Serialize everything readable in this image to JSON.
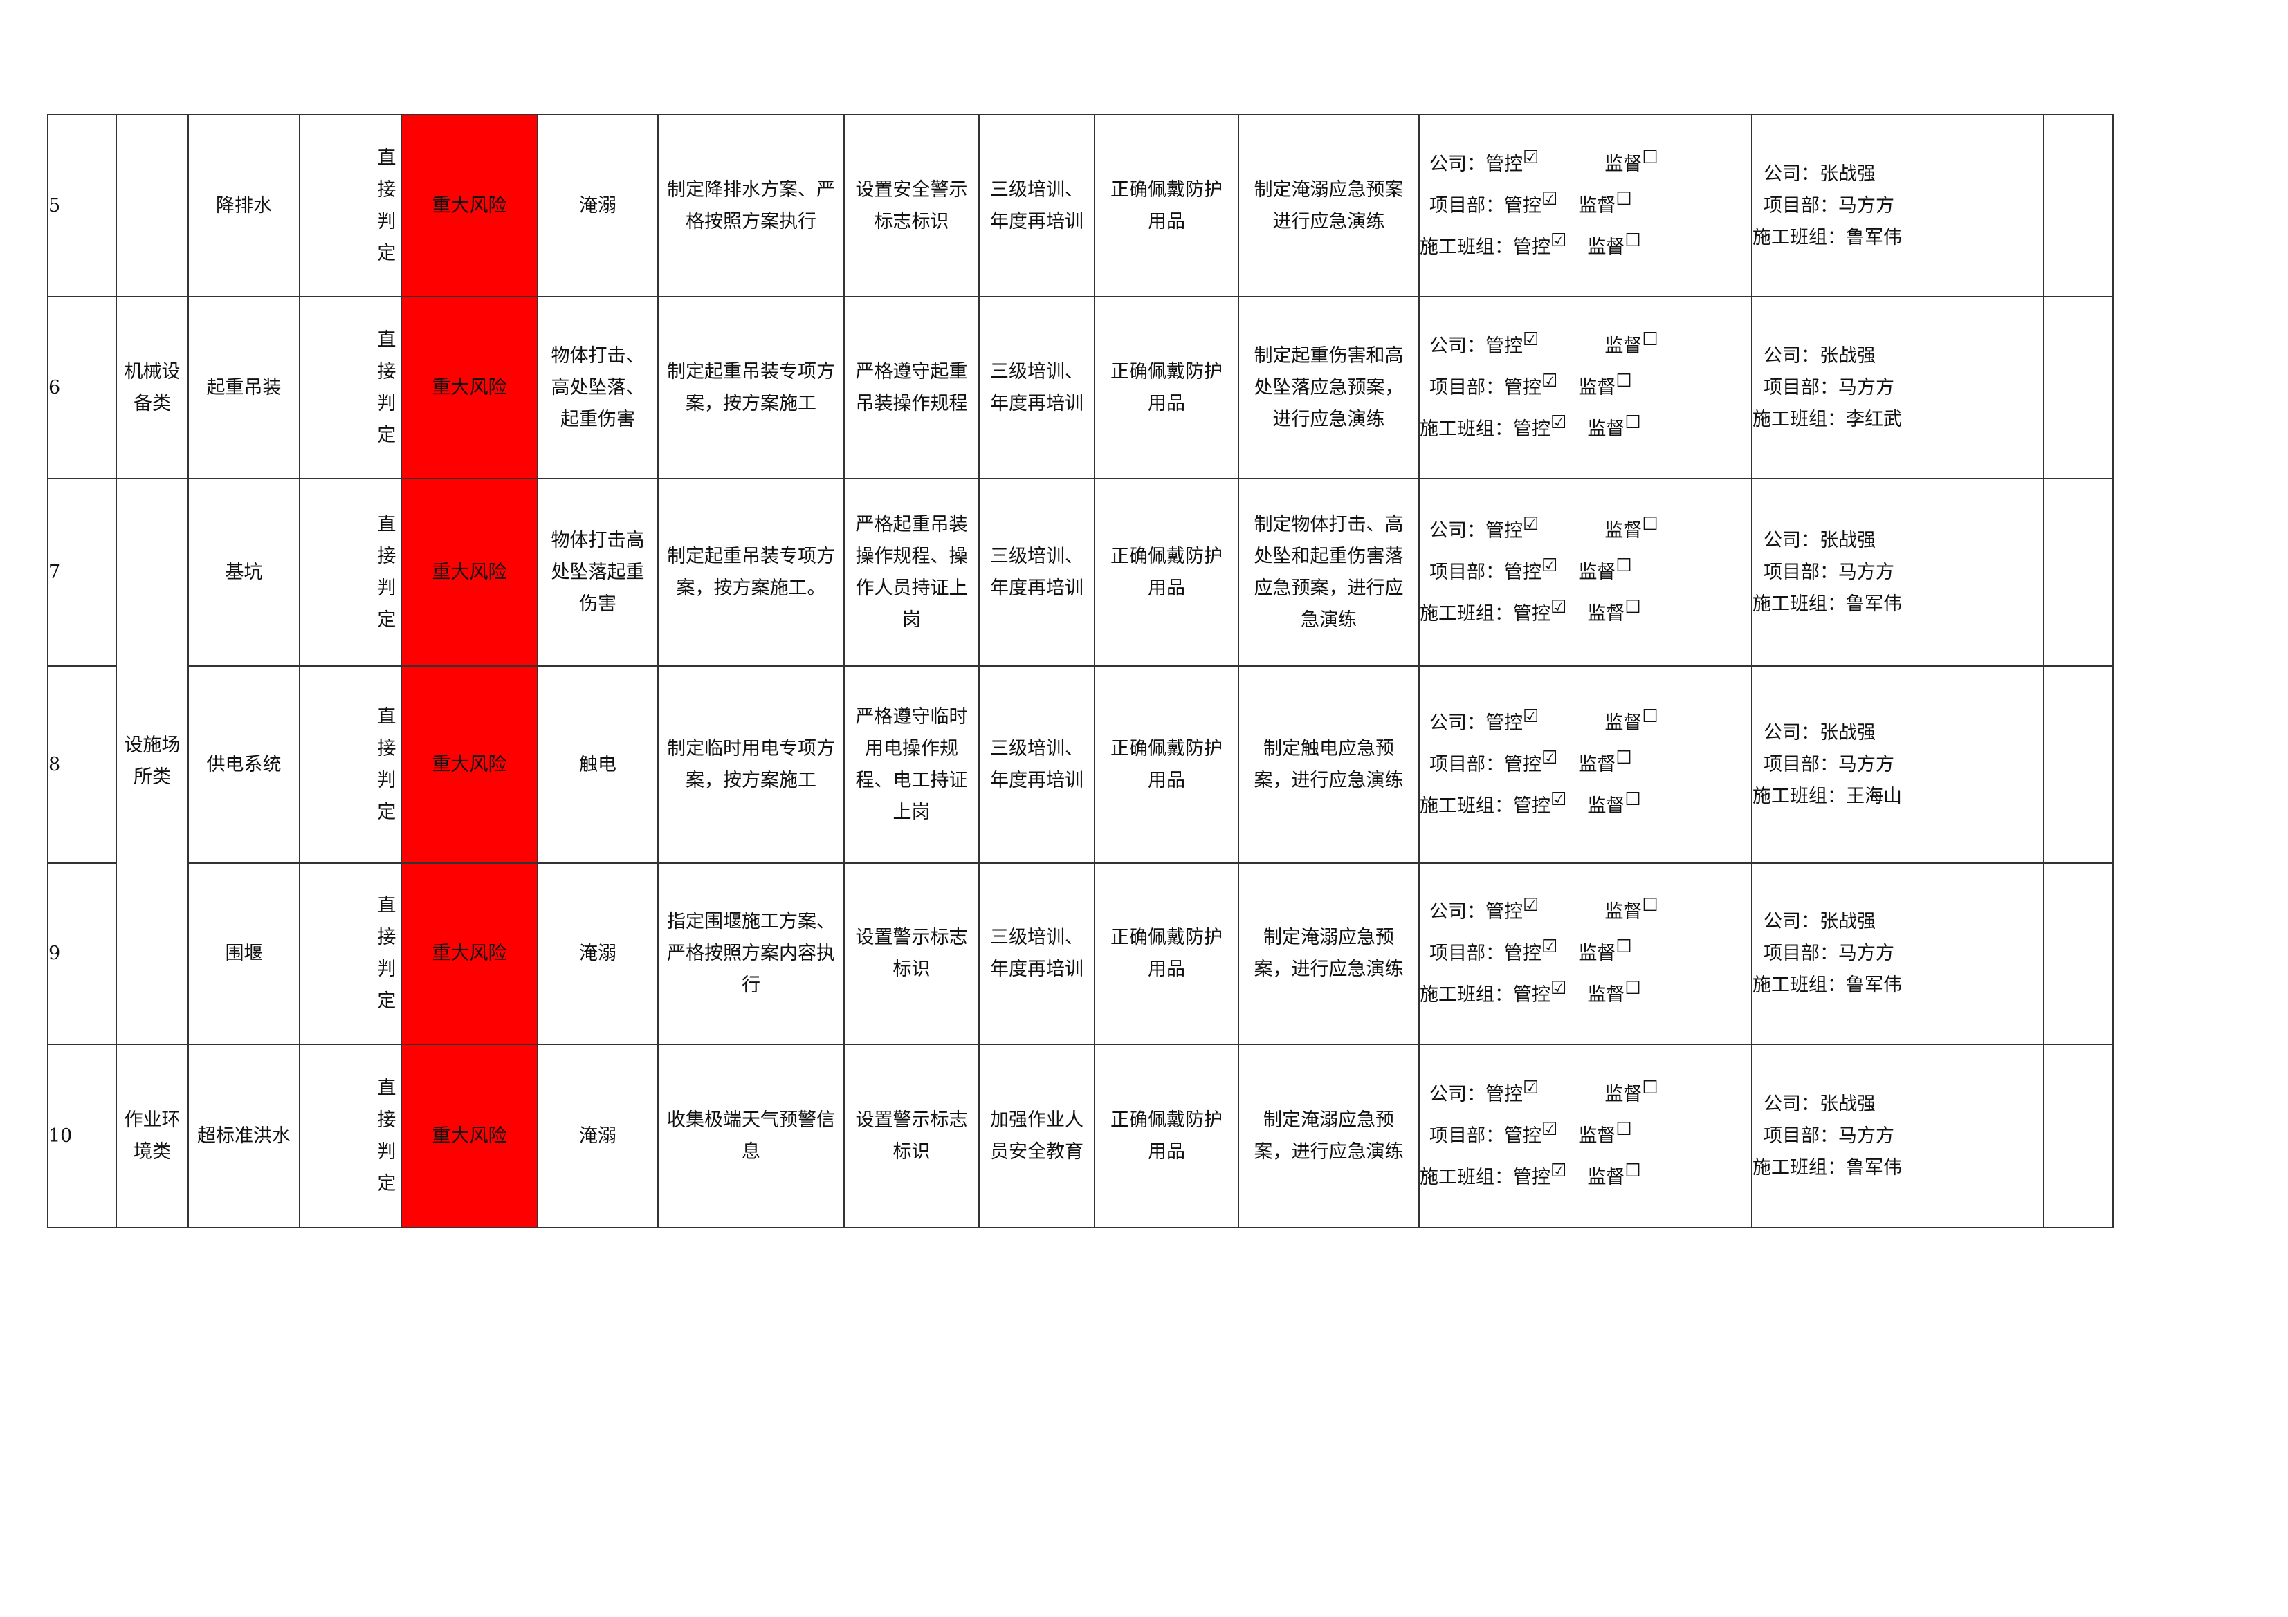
{
  "judgement": "直接判定",
  "risk_level": "重大风险",
  "colors": {
    "risk_level_bg": "#ff0000"
  },
  "control_labels": {
    "company": "公司：管控",
    "project": "项目部：管控",
    "team": "施工班组：管控",
    "supervise": "监督"
  },
  "checkbox_icons": {
    "checked": "☑",
    "unchecked": "☐"
  },
  "rows": [
    {
      "no": "5",
      "category": "",
      "item": "降排水",
      "hazard": "淹溺",
      "engineering": "制定降排水方案、严格按照方案执行",
      "management": "设置安全警示标志标识",
      "training": "三级培训、年度再培训",
      "ppe": "正确佩戴防护用品",
      "emergency": "制定淹溺应急预案进行应急演练",
      "resp_company": "公司：张战强",
      "resp_project": "项目部：马方方",
      "resp_team": "施工班组：鲁军伟"
    },
    {
      "no": "6",
      "category": "机械设备类",
      "item": "起重吊装",
      "hazard": "物体打击、高处坠落、起重伤害",
      "engineering": "制定起重吊装专项方案，按方案施工",
      "management": "严格遵守起重吊装操作规程",
      "training": "三级培训、年度再培训",
      "ppe": "正确佩戴防护用品",
      "emergency": "制定起重伤害和高处坠落应急预案，进行应急演练",
      "resp_company": "公司：张战强",
      "resp_project": "项目部：马方方",
      "resp_team": "施工班组：李红武"
    },
    {
      "no": "7",
      "category": "设施场所类",
      "item": "基坑",
      "hazard": "物体打击高处坠落起重伤害",
      "engineering": "制定起重吊装专项方案，按方案施工。",
      "management": "严格起重吊装操作规程、操作人员持证上岗",
      "training": "三级培训、年度再培训",
      "ppe": "正确佩戴防护用品",
      "emergency": "制定物体打击、高处坠和起重伤害落应急预案，进行应急演练",
      "resp_company": "公司：张战强",
      "resp_project": "项目部：马方方",
      "resp_team": "施工班组：鲁军伟"
    },
    {
      "no": "8",
      "category": "",
      "item": "供电系统",
      "hazard": "触电",
      "engineering": "制定临时用电专项方案，按方案施工",
      "management": "严格遵守临时用电操作规 程、电工持证上岗",
      "training": "三级培训、年度再培训",
      "ppe": "正确佩戴防护用品",
      "emergency": "制定触电应急预案，进行应急演练",
      "resp_company": "公司：张战强",
      "resp_project": "项目部：马方方",
      "resp_team": "施工班组：王海山"
    },
    {
      "no": "9",
      "category": "",
      "item": "围堰",
      "hazard": "淹溺",
      "engineering": "指定围堰施工方案、严格按照方案内容执行",
      "management": "设置警示标志标识",
      "training": "三级培训、年度再培训",
      "ppe": "正确佩戴防护用品",
      "emergency": "制定淹溺应急预案，进行应急演练",
      "resp_company": "公司：张战强",
      "resp_project": "项目部：马方方",
      "resp_team": "施工班组：鲁军伟"
    },
    {
      "no": "10",
      "category": "作业环境类",
      "item": "超标准洪水",
      "hazard": "淹溺",
      "engineering": "收集极端天气预警信息",
      "management": "设置警示标志标识",
      "training": "加强作业人员安全教育",
      "ppe": "正确佩戴防护用品",
      "emergency": "制定淹溺应急预案，进行应急演练",
      "resp_company": "公司：张战强",
      "resp_project": "项目部：马方方",
      "resp_team": "施工班组：鲁军伟"
    }
  ]
}
